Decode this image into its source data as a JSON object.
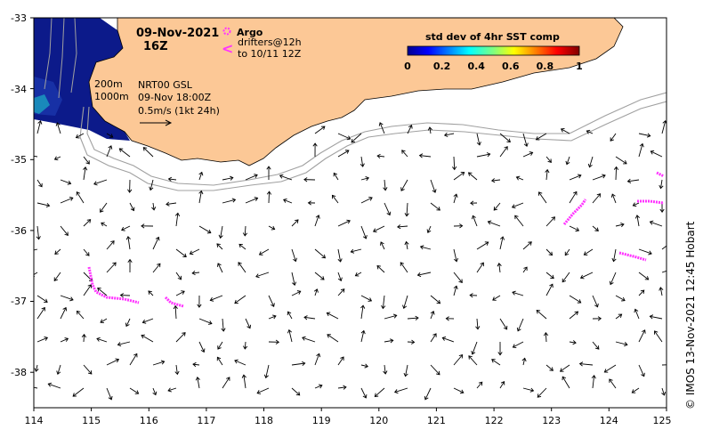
{
  "date": {
    "line1": "09-Nov-2021",
    "line2": "16Z"
  },
  "legend": {
    "argo_label": "Argo",
    "drifter_symbol": "<",
    "drifter_line1": "drifters@12h",
    "drifter_line2": "to 10/11 12Z",
    "argo_color": "#ff33ff"
  },
  "isobaths": {
    "label_200": "200m",
    "label_1000": "1000m"
  },
  "model": {
    "line1": "NRT00 GSL",
    "line2": "09-Nov 18:00Z",
    "line3": "0.5m/s (1kt 24h)"
  },
  "colorbar": {
    "title": "std dev of 4hr SST comp",
    "ticks": [
      "0",
      "0.2",
      "0.4",
      "0.6",
      "0.8",
      "1"
    ]
  },
  "axes": {
    "x_ticks": [
      "114",
      "115",
      "116",
      "117",
      "118",
      "119",
      "120",
      "121",
      "122",
      "123",
      "124",
      "125"
    ],
    "y_ticks": [
      "-33",
      "-34",
      "-35",
      "-36",
      "-37",
      "-38"
    ]
  },
  "credit": "© IMOS 13-Nov-2021 12:45 Hobart",
  "colors": {
    "land": "#fcc896",
    "deep_water": "#0c1a8a",
    "isobath": "#a0a0a0"
  }
}
